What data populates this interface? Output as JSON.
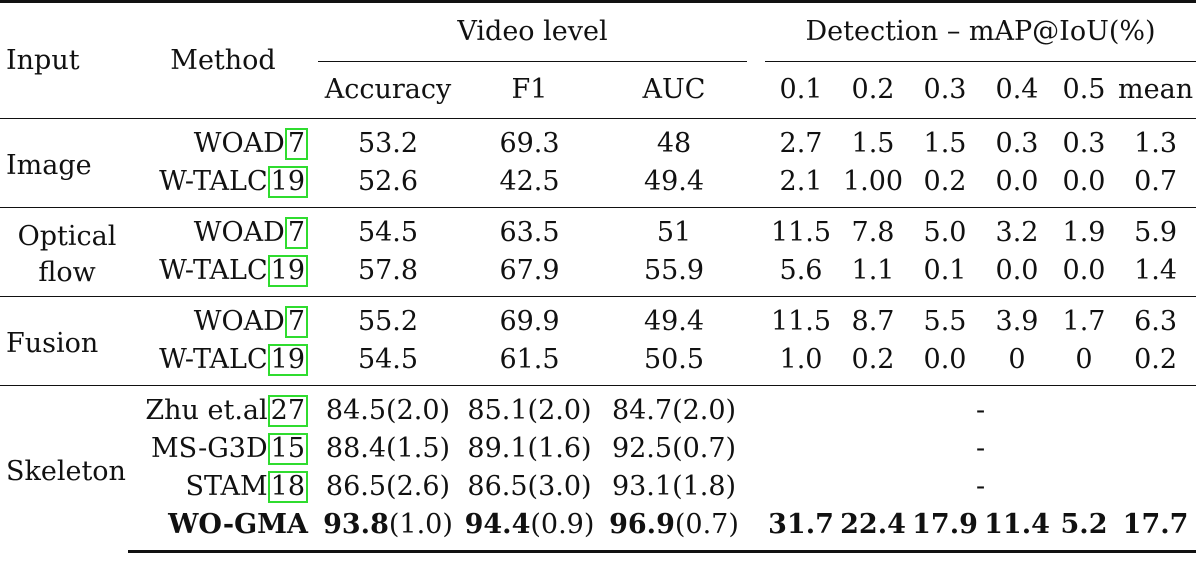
{
  "headers": {
    "input": "Input",
    "method": "Method",
    "video_level": "Video level",
    "detection": "Detection – mAP@IoU(%)",
    "cols": [
      "Accuracy",
      "F1",
      "AUC",
      "0.1",
      "0.2",
      "0.3",
      "0.4",
      "0.5",
      "mean"
    ]
  },
  "groups": [
    {
      "input": [
        "Image"
      ],
      "rows": [
        {
          "method": "WOAD",
          "ref": "7",
          "vals": [
            "53.2",
            "69.3",
            "48",
            "2.7",
            "1.5",
            "1.5",
            "0.3",
            "0.3",
            "1.3"
          ]
        },
        {
          "method": "W-TALC",
          "ref": "19",
          "vals": [
            "52.6",
            "42.5",
            "49.4",
            "2.1",
            "1.00",
            "0.2",
            "0.0",
            "0.0",
            "0.7"
          ]
        }
      ]
    },
    {
      "input": [
        "Optical",
        "flow"
      ],
      "rows": [
        {
          "method": "WOAD",
          "ref": "7",
          "vals": [
            "54.5",
            "63.5",
            "51",
            "11.5",
            "7.8",
            "5.0",
            "3.2",
            "1.9",
            "5.9"
          ]
        },
        {
          "method": "W-TALC",
          "ref": "19",
          "vals": [
            "57.8",
            "67.9",
            "55.9",
            "5.6",
            "1.1",
            "0.1",
            "0.0",
            "0.0",
            "1.4"
          ]
        }
      ]
    },
    {
      "input": [
        "Fusion"
      ],
      "rows": [
        {
          "method": "WOAD",
          "ref": "7",
          "vals": [
            "55.2",
            "69.9",
            "49.4",
            "11.5",
            "8.7",
            "5.5",
            "3.9",
            "1.7",
            "6.3"
          ]
        },
        {
          "method": "W-TALC",
          "ref": "19",
          "vals": [
            "54.5",
            "61.5",
            "50.5",
            "1.0",
            "0.2",
            "0.0",
            "0",
            "0",
            "0.2"
          ]
        }
      ]
    },
    {
      "input": [
        "Skeleton"
      ],
      "rows": [
        {
          "method": "Zhu et.al",
          "ref": "27",
          "video": [
            [
              "84.5",
              "(2.0)"
            ],
            [
              "85.1",
              "(2.0)"
            ],
            [
              "84.7",
              "(2.0)"
            ]
          ],
          "det": "-"
        },
        {
          "method": "MS-G3D",
          "ref": "15",
          "video": [
            [
              "88.4",
              "(1.5)"
            ],
            [
              "89.1",
              "(1.6)"
            ],
            [
              "92.5",
              "(0.7)"
            ]
          ],
          "det": "-"
        },
        {
          "method": "STAM",
          "ref": "18",
          "video": [
            [
              "86.5",
              "(2.6)"
            ],
            [
              "86.5",
              "(3.0)"
            ],
            [
              "93.1",
              "(1.8)"
            ]
          ],
          "det": "-"
        },
        {
          "method": "WO-GMA",
          "bold": true,
          "video": [
            [
              "93.8",
              "(1.0)"
            ],
            [
              "94.4",
              "(0.9)"
            ],
            [
              "96.9",
              "(0.7)"
            ]
          ],
          "det_vals": [
            "31.7",
            "22.4",
            "17.9",
            "11.4",
            "5.2",
            "17.7"
          ]
        }
      ]
    }
  ]
}
